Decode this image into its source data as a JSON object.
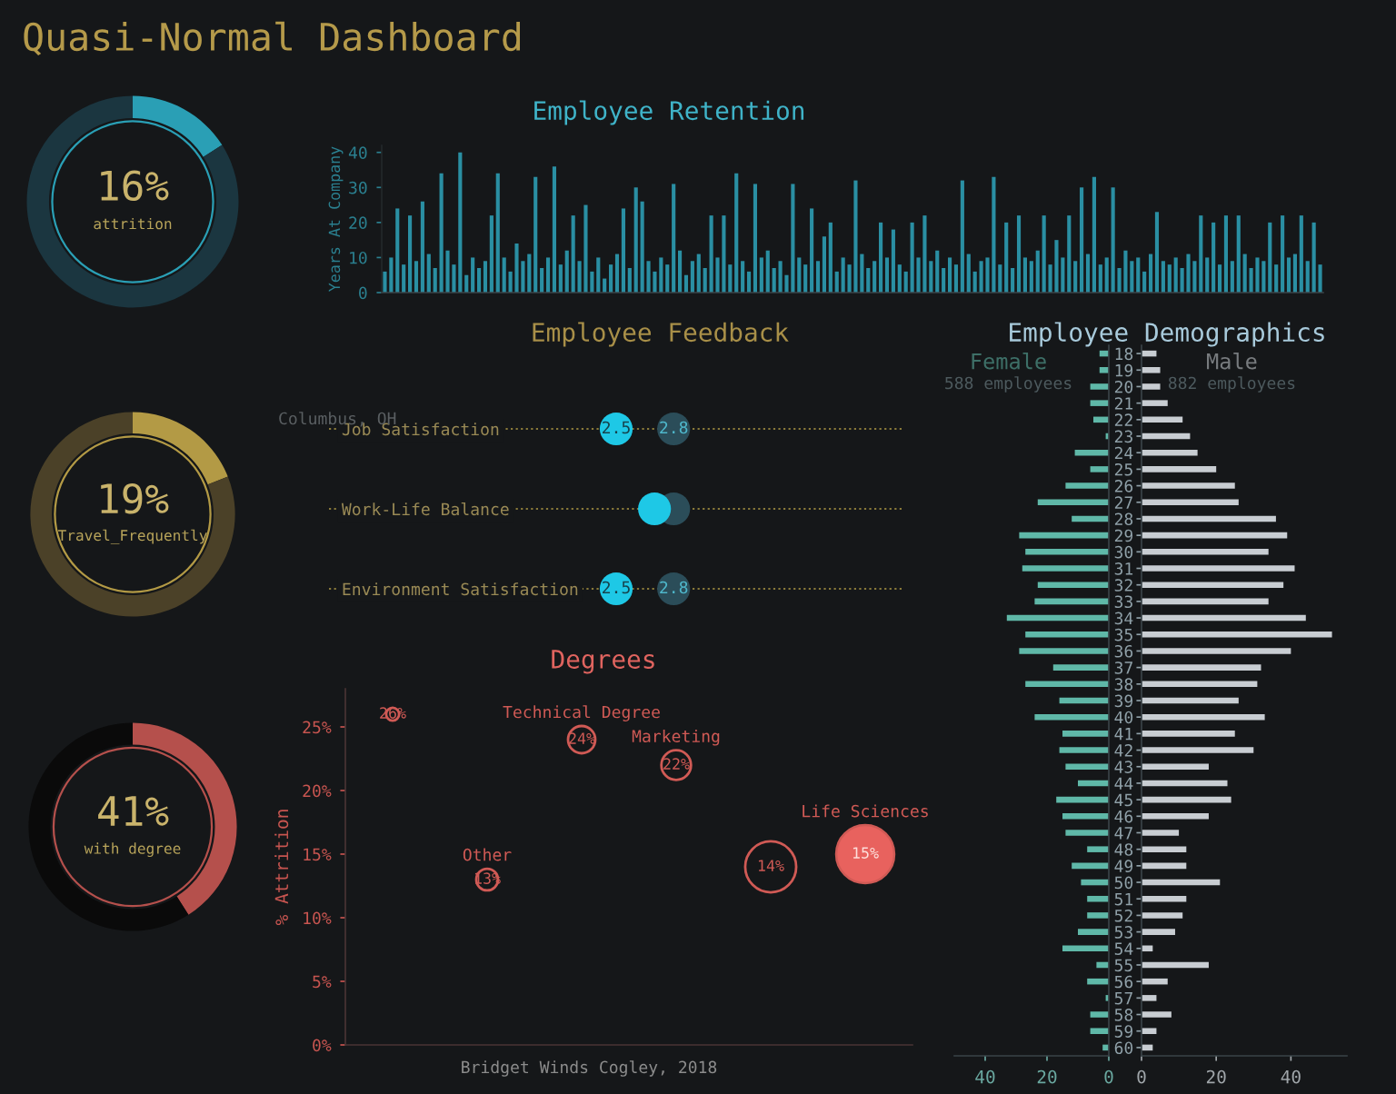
{
  "chart_data": [
    {
      "type": "other",
      "title": "Quasi-Normal Dashboard",
      "annotations": [
        "Columbus, OH"
      ]
    },
    {
      "type": "donut",
      "categories": [
        null,
        null
      ],
      "values": [
        16,
        84
      ],
      "colors": [
        "#2a9fb5",
        "#1b3640"
      ],
      "value_labels": [
        "16%",
        null
      ],
      "annotations": [
        "attrition"
      ]
    },
    {
      "type": "donut",
      "categories": [
        null,
        null
      ],
      "values": [
        19,
        81
      ],
      "colors": [
        "#b39a45",
        "#4b4128"
      ],
      "value_labels": [
        "19%",
        null
      ],
      "annotations": [
        "Travel_Frequently"
      ]
    },
    {
      "type": "donut",
      "categories": [
        null,
        null
      ],
      "values": [
        41,
        59
      ],
      "colors": [
        "#b5504c",
        "#0a0a0a"
      ],
      "value_labels": [
        "41%",
        null
      ],
      "annotations": [
        "with degree"
      ]
    },
    {
      "type": "bar",
      "title": "Employee Retention",
      "ylabel": "Years At Company",
      "categories": [
        null,
        null,
        null,
        null,
        null,
        null,
        null,
        null,
        null,
        null,
        null,
        null,
        null,
        null,
        null,
        null,
        null,
        null,
        null,
        null,
        null,
        null,
        null,
        null,
        null,
        null,
        null,
        null,
        null,
        null,
        null,
        null,
        null,
        null,
        null,
        null,
        null,
        null,
        null,
        null,
        null,
        null,
        null,
        null,
        null,
        null,
        null,
        null,
        null,
        null,
        null,
        null,
        null,
        null,
        null,
        null,
        null,
        null,
        null,
        null,
        null,
        null,
        null,
        null,
        null,
        null,
        null,
        null,
        null,
        null,
        null,
        null,
        null,
        null,
        null,
        null,
        null,
        null,
        null,
        null,
        null,
        null,
        null,
        null,
        null,
        null,
        null,
        null,
        null,
        null,
        null,
        null,
        null,
        null,
        null,
        null,
        null,
        null,
        null,
        null,
        null,
        null,
        null,
        null,
        null,
        null,
        null,
        null,
        null,
        null,
        null,
        null,
        null,
        null,
        null,
        null,
        null,
        null,
        null,
        null,
        null,
        null,
        null,
        null,
        null,
        null,
        null,
        null,
        null,
        null,
        null,
        null,
        null,
        null,
        null,
        null,
        null,
        null,
        null,
        null,
        null,
        null,
        null,
        null,
        null,
        null,
        null,
        null,
        null,
        null
      ],
      "values": [
        6,
        10,
        24,
        8,
        22,
        9,
        26,
        11,
        7,
        34,
        12,
        8,
        40,
        5,
        10,
        7,
        9,
        22,
        34,
        10,
        6,
        14,
        9,
        11,
        33,
        7,
        10,
        36,
        8,
        12,
        22,
        9,
        25,
        6,
        10,
        4,
        8,
        11,
        24,
        7,
        30,
        26,
        9,
        6,
        10,
        8,
        31,
        12,
        5,
        9,
        11,
        7,
        22,
        10,
        22,
        8,
        34,
        9,
        6,
        31,
        10,
        12,
        7,
        9,
        5,
        31,
        10,
        8,
        24,
        9,
        16,
        20,
        6,
        10,
        8,
        32,
        11,
        7,
        9,
        20,
        10,
        18,
        8,
        6,
        20,
        10,
        22,
        9,
        12,
        7,
        10,
        8,
        32,
        11,
        6,
        9,
        10,
        33,
        8,
        20,
        7,
        22,
        10,
        9,
        12,
        22,
        8,
        15,
        10,
        22,
        9,
        30,
        11,
        33,
        8,
        10,
        30,
        7,
        12,
        9,
        10,
        6,
        11,
        23,
        9,
        8,
        10,
        7,
        11,
        9,
        22,
        10,
        20,
        8,
        22,
        9,
        22,
        11,
        7,
        10,
        9,
        20,
        8,
        22,
        10,
        11,
        22,
        9,
        20,
        8
      ],
      "color": "#2a8fa3",
      "ylim": [
        0,
        42
      ],
      "yticks": [
        0,
        10,
        20,
        30,
        40
      ]
    },
    {
      "type": "scatter",
      "title": "Employee Feedback",
      "orientation": "horizontal",
      "categories": [
        "Job Satisfaction",
        "Work-Life Balance",
        "Environment Satisfaction"
      ],
      "series": [
        {
          "color": "#1ec8e6",
          "values": [
            2.5,
            2.7,
            2.5
          ],
          "value_labels": [
            "2.5",
            null,
            "2.5"
          ]
        },
        {
          "color": "#2b4d59",
          "values": [
            2.8,
            2.8,
            2.8
          ],
          "value_labels": [
            "2.8",
            null,
            "2.8"
          ]
        }
      ],
      "xlim": [
        1,
        4
      ],
      "tick_labels": "y",
      "grid": "y",
      "marker": "circle"
    },
    {
      "type": "bubble",
      "title": "Degrees",
      "ylabel": "% Attrition",
      "categories": [
        null,
        null,
        null,
        null,
        null,
        null
      ],
      "values": [
        26,
        13,
        24,
        22,
        14,
        15
      ],
      "sizes": [
        0.05,
        0.14,
        0.22,
        0.26,
        0.77,
        1
      ],
      "colors": [
        "#d05a55",
        "#d05a55",
        "#d05a55",
        "#d05a55",
        "#d05a55",
        "#e8625e"
      ],
      "value_labels": [
        "26%",
        "13%",
        "24%",
        "22%",
        "14%",
        "15%"
      ],
      "ylim": [
        0,
        28
      ],
      "yticks": [
        {
          "value": 0,
          "label": "0%"
        },
        {
          "value": 5,
          "label": "5%"
        },
        {
          "value": 10,
          "label": "10%"
        },
        {
          "value": 15,
          "label": "15%"
        },
        {
          "value": 20,
          "label": "20%"
        },
        {
          "value": 25,
          "label": "25%"
        }
      ],
      "annotations": [
        "Bridget Winds Cogley, 2018",
        {
          "text": "Other",
          "y": 13
        },
        {
          "text": "Technical Degree",
          "y": 24
        },
        {
          "text": "Marketing",
          "y": 22
        },
        {
          "text": "Life Sciences",
          "y": 15
        }
      ]
    },
    {
      "type": "bar",
      "orientation": "horizontal",
      "title": "Employee Demographics",
      "subtitle": "588 employees",
      "categories": [
        "18",
        "19",
        "20",
        "21",
        "22",
        "23",
        "24",
        "25",
        "26",
        "27",
        "28",
        "29",
        "30",
        "31",
        "32",
        "33",
        "34",
        "35",
        "36",
        "37",
        "38",
        "39",
        "40",
        "41",
        "42",
        "43",
        "44",
        "45",
        "46",
        "47",
        "48",
        "49",
        "50",
        "51",
        "52",
        "53",
        "54",
        "55",
        "56",
        "57",
        "58",
        "59",
        "60"
      ],
      "series": [
        {
          "name": "Female",
          "color": "#5fb8a8",
          "values": [
            3,
            3,
            6,
            6,
            5,
            1,
            11,
            6,
            14,
            23,
            12,
            29,
            27,
            28,
            23,
            24,
            33,
            27,
            29,
            18,
            27,
            16,
            24,
            15,
            16,
            14,
            10,
            17,
            15,
            14,
            7,
            12,
            9,
            7,
            7,
            10,
            15,
            4,
            7,
            1,
            6,
            6,
            2
          ]
        }
      ],
      "xlim": [
        50,
        0
      ],
      "xticks": [
        40,
        20,
        0
      ]
    },
    {
      "type": "bar",
      "orientation": "horizontal",
      "subtitle": "882 employees",
      "categories": [
        "18",
        "19",
        "20",
        "21",
        "22",
        "23",
        "24",
        "25",
        "26",
        "27",
        "28",
        "29",
        "30",
        "31",
        "32",
        "33",
        "34",
        "35",
        "36",
        "37",
        "38",
        "39",
        "40",
        "41",
        "42",
        "43",
        "44",
        "45",
        "46",
        "47",
        "48",
        "49",
        "50",
        "51",
        "52",
        "53",
        "54",
        "55",
        "56",
        "57",
        "58",
        "59",
        "60"
      ],
      "series": [
        {
          "name": "Male",
          "color": "#c8cdd2",
          "values": [
            4,
            5,
            5,
            7,
            11,
            13,
            15,
            20,
            25,
            26,
            36,
            39,
            34,
            41,
            38,
            34,
            44,
            51,
            40,
            32,
            31,
            26,
            33,
            25,
            30,
            18,
            23,
            24,
            18,
            10,
            12,
            12,
            21,
            12,
            11,
            9,
            3,
            18,
            7,
            4,
            8,
            4,
            3
          ]
        }
      ],
      "xlim": [
        0,
        55
      ],
      "xticks": [
        0,
        20,
        40
      ],
      "tick_labels": "x"
    }
  ]
}
